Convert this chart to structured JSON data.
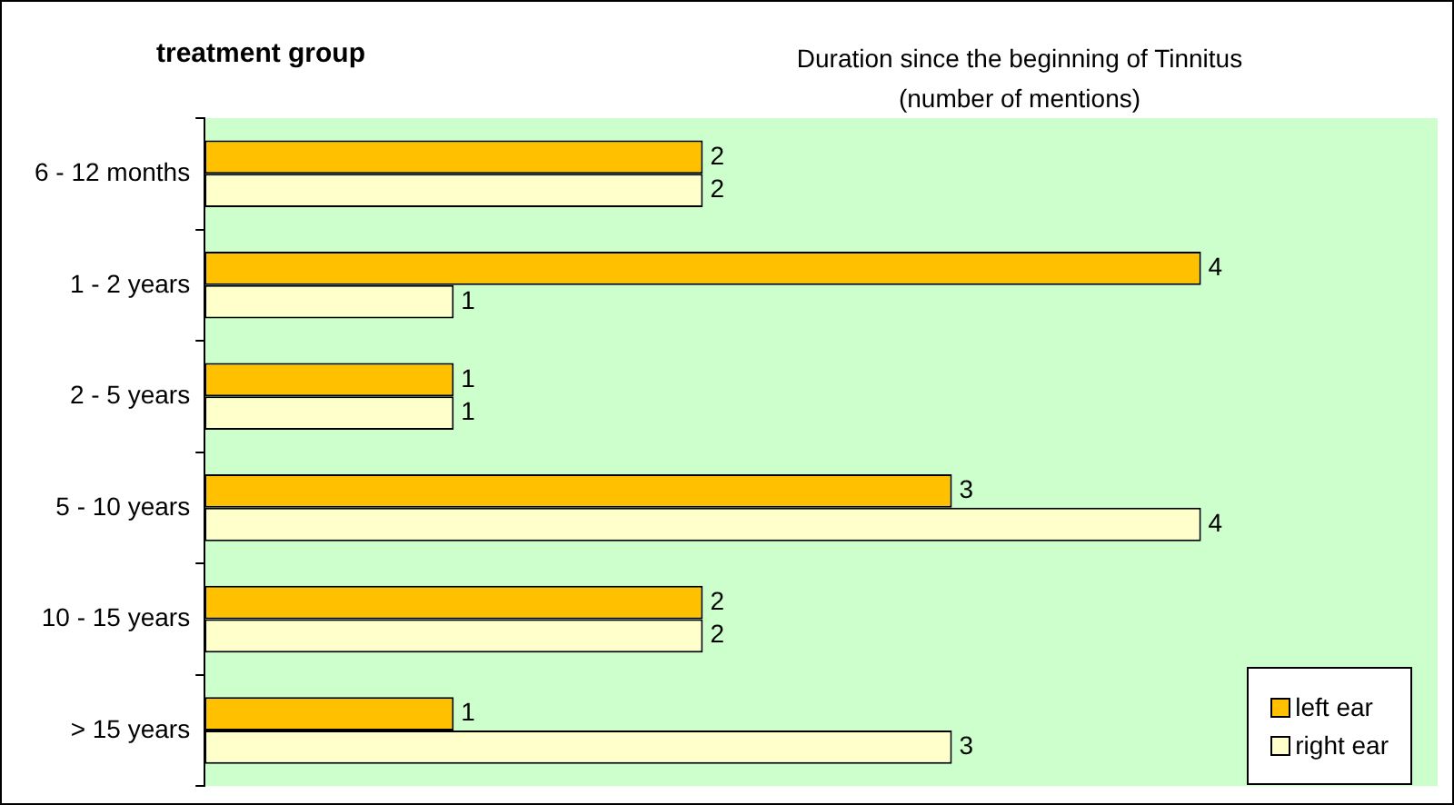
{
  "chart_data": {
    "type": "bar",
    "orientation": "horizontal",
    "title": "treatment group",
    "subtitle": "Duration since the beginning of Tinnitus\n(number of mentions)",
    "categories": [
      "6 - 12 months",
      "1 - 2 years",
      "2 - 5 years",
      "5 - 10 years",
      "10 - 15 years",
      "> 15 years"
    ],
    "series": [
      {
        "name": "left ear",
        "color": "#ffc000",
        "values": [
          2,
          4,
          1,
          3,
          2,
          1
        ]
      },
      {
        "name": "right ear",
        "color": "#ffffcc",
        "values": [
          2,
          1,
          1,
          4,
          2,
          3
        ]
      }
    ],
    "xlim": [
      0,
      4.95
    ],
    "data_labels": true,
    "legend": "bottom right",
    "tick_labels": "y"
  }
}
